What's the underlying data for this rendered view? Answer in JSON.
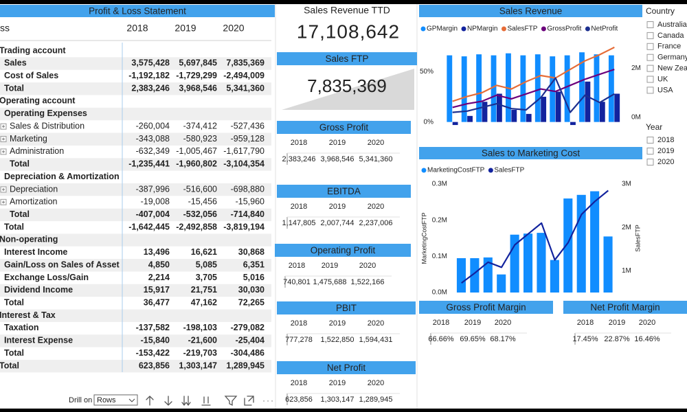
{
  "pl": {
    "title": "Profit & Loss Statement",
    "columns": [
      "ss",
      "2018",
      "2019",
      "2020"
    ],
    "rows": [
      [
        "Trading account"
      ],
      [
        "Sales",
        "3,575,428",
        "5,697,845",
        "7,835,369"
      ],
      [
        "Cost of Sales",
        "-1,192,182",
        "-1,729,299",
        "-2,494,009"
      ],
      [
        "Total",
        "2,383,246",
        "3,968,546",
        "5,341,360"
      ],
      [
        "Operating account"
      ],
      [
        "Operating Expenses"
      ],
      [
        "Sales & Distribution",
        "-260,004",
        "-374,412",
        "-527,436"
      ],
      [
        "Marketing",
        "-343,088",
        "-580,923",
        "-959,128"
      ],
      [
        "Administration",
        "-632,349",
        "-1,005,467",
        "-1,617,790"
      ],
      [
        "Total",
        "-1,235,441",
        "-1,960,802",
        "-3,104,354"
      ],
      [
        "Depreciation & Amortization"
      ],
      [
        "Depreciation",
        "-387,996",
        "-516,600",
        "-698,880"
      ],
      [
        "Amortization",
        "-19,008",
        "-15,456",
        "-15,960"
      ],
      [
        "Total",
        "-407,004",
        "-532,056",
        "-714,840"
      ],
      [
        "Total",
        "-1,642,445",
        "-2,492,858",
        "-3,819,194"
      ],
      [
        "Non-operating"
      ],
      [
        "Interest Income",
        "13,496",
        "16,621",
        "30,868"
      ],
      [
        "Gain/Loss on Sales of Asset",
        "4,850",
        "5,085",
        "6,351"
      ],
      [
        "Exchange Loss/Gain",
        "2,214",
        "3,705",
        "5,016"
      ],
      [
        "Dividend Income",
        "15,917",
        "21,751",
        "30,030"
      ],
      [
        "Total",
        "36,477",
        "47,162",
        "72,265"
      ],
      [
        "Interest & Tax"
      ],
      [
        "Taxation",
        "-137,582",
        "-198,103",
        "-279,082"
      ],
      [
        "Interest Expense",
        "-15,840",
        "-21,600",
        "-25,404"
      ],
      [
        "Total",
        "-153,422",
        "-219,703",
        "-304,486"
      ],
      [
        "Total",
        "623,856",
        "1,303,147",
        "1,289,945"
      ]
    ]
  },
  "drill": {
    "label": "Drill on",
    "value": "Rows"
  },
  "kpis": [
    {
      "title": "Sales Revenue TTD",
      "value": "17,108,642"
    },
    {
      "title": "Sales FTP",
      "value": "7,835,369"
    }
  ],
  "cards": [
    {
      "title": "Gross Profit",
      "years": [
        "2018",
        "2019",
        "2020"
      ],
      "values": [
        "2,383,246",
        "3,968,546",
        "5,341,360"
      ]
    },
    {
      "title": "EBITDA",
      "years": [
        "2018",
        "2019",
        "2020"
      ],
      "values": [
        "1,147,805",
        "2,007,744",
        "2,237,006"
      ]
    },
    {
      "title": "Operating Profit",
      "years": [
        "2018",
        "2019",
        "2020"
      ],
      "values": [
        "740,801",
        "1,475,688",
        "1,522,166"
      ]
    },
    {
      "title": "PBIT",
      "years": [
        "2018",
        "2019",
        "2020"
      ],
      "values": [
        "777,278",
        "1,522,850",
        "1,594,431"
      ]
    },
    {
      "title": "Net Profit",
      "years": [
        "2018",
        "2019",
        "2020"
      ],
      "values": [
        "623,856",
        "1,303,147",
        "1,289,945"
      ]
    },
    {
      "title": "Gross Profit Margin",
      "years": [
        "2018",
        "2019",
        "2020"
      ],
      "values": [
        "66.66%",
        "69.65%",
        "68.17%"
      ]
    },
    {
      "title": "Net Profit Margin",
      "years": [
        "2018",
        "2019",
        "2020"
      ],
      "values": [
        "17.45%",
        "22.87%",
        "16.46%"
      ]
    }
  ],
  "charts": [
    {
      "type": "combo",
      "title": "Sales Revenue",
      "categories": [
        null,
        null,
        null,
        null,
        null,
        null,
        null,
        null,
        null,
        null,
        null,
        null
      ],
      "series": [
        {
          "name": "GPMargin",
          "color": "#118dff",
          "kind": "bar",
          "values": [
            66,
            65,
            67,
            66,
            68,
            66,
            67,
            65,
            66,
            69,
            67,
            66
          ]
        },
        {
          "name": "NPMargin",
          "color": "#12239e",
          "kind": "bar",
          "values": [
            -3,
            6,
            20,
            28,
            12,
            8,
            25,
            30,
            -3,
            40,
            20,
            28
          ]
        },
        {
          "name": "SalesFTP",
          "color": "#e66c37",
          "kind": "line",
          "axis": "y2",
          "values": [
            0.65,
            0.85,
            1.0,
            1.3,
            1.15,
            1.45,
            1.7,
            1.6,
            1.95,
            2.3,
            2.55,
            2.85
          ]
        },
        {
          "name": "GrossProfit",
          "color": "#6b007b",
          "kind": "line",
          "axis": "y2",
          "values": [
            0.4,
            0.55,
            0.65,
            0.9,
            0.75,
            0.95,
            1.15,
            1.05,
            1.3,
            1.55,
            1.75,
            1.95
          ]
        },
        {
          "name": "NetProfit",
          "color": "#1c2f8f",
          "kind": "line",
          "axis": "y2",
          "values": [
            0.2,
            0.25,
            0.4,
            0.55,
            0.35,
            0.3,
            0.8,
            1.6,
            0.2,
            0.9,
            0.6,
            0.95
          ]
        }
      ],
      "ylim": [
        -5,
        80
      ],
      "yticks": [
        {
          "value": 0,
          "label": "0%"
        },
        {
          "value": 50,
          "label": "50%"
        }
      ],
      "y2lim": [
        -0.4,
        3.1
      ],
      "y2ticks": [
        {
          "value": 0,
          "label": "0M"
        },
        {
          "value": 2,
          "label": "2M"
        }
      ]
    },
    {
      "type": "combo",
      "title": "Sales to Marketing Cost",
      "categories": [
        null,
        null,
        null,
        null,
        null,
        null,
        null,
        null,
        null,
        null,
        null,
        null
      ],
      "series": [
        {
          "name": "MarketingCostFTP",
          "color": "#118dff",
          "kind": "bar",
          "values": [
            0.095,
            0.095,
            0.097,
            0.05,
            0.16,
            0.163,
            0.165,
            0.09,
            0.26,
            0.27,
            0.28,
            0.155
          ]
        },
        {
          "name": "SalesFTP",
          "color": "#12239e",
          "kind": "line",
          "axis": "y2",
          "values": [
            0.72,
            0.95,
            1.2,
            1.08,
            1.6,
            1.85,
            2.1,
            1.25,
            1.65,
            2.3,
            2.6,
            2.85
          ]
        }
      ],
      "y_label": "MarketingCostFTP",
      "y2_label": "SalesFTP",
      "ylim": [
        0,
        0.3
      ],
      "yticks": [
        {
          "value": 0,
          "label": "0.0M"
        },
        {
          "value": 0.1,
          "label": "0.1M"
        },
        {
          "value": 0.2,
          "label": "0.2M"
        },
        {
          "value": 0.3,
          "label": "0.3M"
        }
      ],
      "y2lim": [
        0.5,
        3
      ],
      "y2ticks": [
        {
          "value": 1,
          "label": "1M"
        },
        {
          "value": 2,
          "label": "2M"
        },
        {
          "value": 3,
          "label": "3M"
        }
      ]
    }
  ],
  "slicers": [
    {
      "title": "Country",
      "items": [
        "Australia",
        "Canada",
        "France",
        "Germany",
        "New Zea",
        "UK",
        "USA"
      ]
    },
    {
      "title": "Year",
      "items": [
        "2018",
        "2019",
        "2020"
      ]
    }
  ]
}
